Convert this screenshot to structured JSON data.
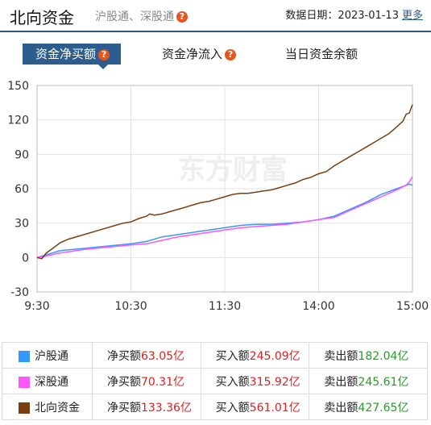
{
  "header": {
    "title": "北向资金",
    "subtitle": "沪股通、深股通",
    "date_label": "数据日期：",
    "date": "2023-01-13",
    "more": "更多",
    "help_glyph": "?"
  },
  "tabs": [
    {
      "label": "资金净买额",
      "active": true,
      "help": true
    },
    {
      "label": "资金净流入",
      "active": false,
      "help": true
    },
    {
      "label": "当日资金余额",
      "active": false,
      "help": false
    }
  ],
  "watermark": "东方财富",
  "chart_data": {
    "type": "line",
    "xlabels": [
      "9:30",
      "10:30",
      "11:30",
      "14:00",
      "15:00"
    ],
    "yticks": [
      150,
      120,
      90,
      60,
      30,
      0,
      -30
    ],
    "ylim": [
      -30,
      150
    ],
    "x_unit": "minutes since open (0=9:30, 240=15:00)",
    "series": [
      {
        "name": "沪股通",
        "color": "#3399ff",
        "points": [
          [
            0,
            0
          ],
          [
            5,
            2
          ],
          [
            15,
            6
          ],
          [
            30,
            8
          ],
          [
            45,
            10
          ],
          [
            60,
            12
          ],
          [
            70,
            14
          ],
          [
            80,
            18
          ],
          [
            90,
            20
          ],
          [
            100,
            22
          ],
          [
            110,
            24
          ],
          [
            120,
            26
          ],
          [
            130,
            28
          ],
          [
            140,
            29
          ],
          [
            150,
            29
          ],
          [
            160,
            30
          ],
          [
            170,
            31
          ],
          [
            180,
            33
          ],
          [
            190,
            36
          ],
          [
            200,
            42
          ],
          [
            210,
            48
          ],
          [
            220,
            55
          ],
          [
            230,
            60
          ],
          [
            236,
            63
          ],
          [
            238,
            64
          ],
          [
            240,
            63.05
          ]
        ]
      },
      {
        "name": "深股通",
        "color": "#ff55ff",
        "points": [
          [
            0,
            0
          ],
          [
            5,
            1
          ],
          [
            15,
            4
          ],
          [
            30,
            7
          ],
          [
            45,
            9
          ],
          [
            60,
            11
          ],
          [
            70,
            12
          ],
          [
            80,
            15
          ],
          [
            90,
            18
          ],
          [
            100,
            20
          ],
          [
            110,
            22
          ],
          [
            120,
            24
          ],
          [
            130,
            26
          ],
          [
            140,
            27
          ],
          [
            150,
            28
          ],
          [
            160,
            29
          ],
          [
            170,
            31
          ],
          [
            180,
            33
          ],
          [
            190,
            35
          ],
          [
            200,
            41
          ],
          [
            210,
            47
          ],
          [
            220,
            53
          ],
          [
            230,
            59
          ],
          [
            236,
            63
          ],
          [
            238,
            66
          ],
          [
            240,
            70.31
          ]
        ]
      },
      {
        "name": "北向资金",
        "color": "#7a3e10",
        "points": [
          [
            0,
            0
          ],
          [
            3,
            -1
          ],
          [
            6,
            4
          ],
          [
            10,
            8
          ],
          [
            15,
            13
          ],
          [
            20,
            16
          ],
          [
            30,
            20
          ],
          [
            40,
            24
          ],
          [
            50,
            28
          ],
          [
            55,
            30
          ],
          [
            60,
            31
          ],
          [
            65,
            34
          ],
          [
            70,
            36
          ],
          [
            72,
            38
          ],
          [
            75,
            37
          ],
          [
            80,
            38
          ],
          [
            85,
            40
          ],
          [
            90,
            42
          ],
          [
            95,
            44
          ],
          [
            100,
            46
          ],
          [
            105,
            48
          ],
          [
            110,
            49
          ],
          [
            115,
            51
          ],
          [
            120,
            53
          ],
          [
            125,
            55
          ],
          [
            130,
            56
          ],
          [
            135,
            56
          ],
          [
            140,
            57
          ],
          [
            145,
            58
          ],
          [
            150,
            59
          ],
          [
            155,
            61
          ],
          [
            160,
            63
          ],
          [
            165,
            65
          ],
          [
            170,
            68
          ],
          [
            175,
            70
          ],
          [
            180,
            73
          ],
          [
            185,
            75
          ],
          [
            190,
            80
          ],
          [
            195,
            84
          ],
          [
            200,
            88
          ],
          [
            205,
            92
          ],
          [
            210,
            96
          ],
          [
            215,
            100
          ],
          [
            220,
            104
          ],
          [
            225,
            108
          ],
          [
            230,
            114
          ],
          [
            234,
            119
          ],
          [
            236,
            125
          ],
          [
            238,
            126
          ],
          [
            240,
            133.36
          ]
        ]
      }
    ]
  },
  "legend": [
    {
      "name": "沪股通",
      "color": "#3399ff",
      "net_label": "净买额",
      "net": "63.05亿",
      "buy_label": "买入额",
      "buy": "245.09亿",
      "sell_label": "卖出额",
      "sell": "182.04亿"
    },
    {
      "name": "深股通",
      "color": "#ff55ff",
      "net_label": "净买额",
      "net": "70.31亿",
      "buy_label": "买入额",
      "buy": "315.92亿",
      "sell_label": "卖出额",
      "sell": "245.61亿"
    },
    {
      "name": "北向资金",
      "color": "#7a3e10",
      "net_label": "净买额",
      "net": "133.36亿",
      "buy_label": "买入额",
      "buy": "561.01亿",
      "sell_label": "卖出额",
      "sell": "427.65亿"
    }
  ]
}
